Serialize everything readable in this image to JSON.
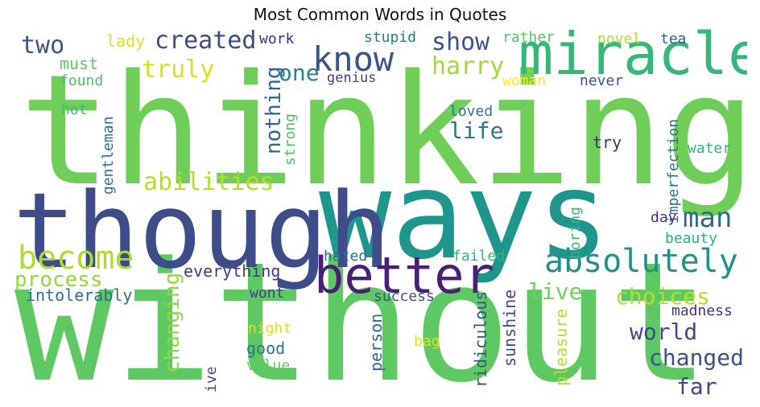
{
  "chart_data": {
    "type": "wordcloud",
    "title": "Most Common Words in Quotes",
    "colormap": "viridis",
    "background": "#ffffff",
    "words": [
      {
        "text": "without",
        "color": "#5ec962"
      },
      {
        "text": "thinking",
        "color": "#6ece58"
      },
      {
        "text": "ways",
        "color": "#1f968b"
      },
      {
        "text": "though",
        "color": "#3e4c8a"
      },
      {
        "text": "miracle",
        "color": "#35b779"
      },
      {
        "text": "better",
        "color": "#482173"
      },
      {
        "text": "know",
        "color": "#3b528b"
      },
      {
        "text": "absolutely",
        "color": "#21918c"
      },
      {
        "text": "become",
        "color": "#addc30"
      },
      {
        "text": "man",
        "color": "#31688e"
      },
      {
        "text": "abilities",
        "color": "#b5de2b"
      },
      {
        "text": "created",
        "color": "#3e4989"
      },
      {
        "text": "two",
        "color": "#3b528b"
      },
      {
        "text": "truly",
        "color": "#d8e219"
      },
      {
        "text": "harry",
        "color": "#a0da39"
      },
      {
        "text": "show",
        "color": "#3b528b"
      },
      {
        "text": "one",
        "color": "#26828e"
      },
      {
        "text": "nothing",
        "color": "#31688e"
      },
      {
        "text": "life",
        "color": "#2a788e"
      },
      {
        "text": "process",
        "color": "#93d741"
      },
      {
        "text": "changing",
        "color": "#90d743"
      },
      {
        "text": "choices",
        "color": "#b5de2b"
      },
      {
        "text": "live",
        "color": "#6ece58"
      },
      {
        "text": "world",
        "color": "#3e4a89"
      },
      {
        "text": "changed",
        "color": "#3b528b"
      },
      {
        "text": "far",
        "color": "#3e4989"
      },
      {
        "text": "everything",
        "color": "#453781"
      },
      {
        "text": "intolerably",
        "color": "#2e6f8e"
      },
      {
        "text": "lady",
        "color": "#dde318"
      },
      {
        "text": "work",
        "color": "#472d7b"
      },
      {
        "text": "stupid",
        "color": "#2a788e"
      },
      {
        "text": "rather",
        "color": "#54c568"
      },
      {
        "text": "novel",
        "color": "#addc30"
      },
      {
        "text": "tea",
        "color": "#38598c"
      },
      {
        "text": "must",
        "color": "#5ec962"
      },
      {
        "text": "found",
        "color": "#4ac16d"
      },
      {
        "text": "genius",
        "color": "#433e85"
      },
      {
        "text": "woman",
        "color": "#fde725"
      },
      {
        "text": "never",
        "color": "#3b528b"
      },
      {
        "text": "hot",
        "color": "#3fbc73"
      },
      {
        "text": "loved",
        "color": "#2a788e"
      },
      {
        "text": "strong",
        "color": "#4ac16d"
      },
      {
        "text": "gentleman",
        "color": "#2e6f8e"
      },
      {
        "text": "try",
        "color": "#472d7b"
      },
      {
        "text": "imperfection",
        "color": "#2e6f8e"
      },
      {
        "text": "water",
        "color": "#32b67a"
      },
      {
        "text": "boring",
        "color": "#35b779"
      },
      {
        "text": "day",
        "color": "#46327e"
      },
      {
        "text": "beauty",
        "color": "#29af7f"
      },
      {
        "text": "hated",
        "color": "#2e6f8e"
      },
      {
        "text": "failed",
        "color": "#32b67a"
      },
      {
        "text": "wont",
        "color": "#433e85"
      },
      {
        "text": "success",
        "color": "#3b528b"
      },
      {
        "text": "night",
        "color": "#d8e219"
      },
      {
        "text": "good",
        "color": "#2a788e"
      },
      {
        "text": "value",
        "color": "#5ec962"
      },
      {
        "text": "person",
        "color": "#31688e"
      },
      {
        "text": "bag",
        "color": "#d8e219"
      },
      {
        "text": "ridiculous",
        "color": "#3b528b"
      },
      {
        "text": "sunshine",
        "color": "#3e4a89"
      },
      {
        "text": "pleasure",
        "color": "#bade28"
      },
      {
        "text": "madness",
        "color": "#46327e"
      },
      {
        "text": "ive",
        "color": "#3e4989"
      }
    ]
  }
}
